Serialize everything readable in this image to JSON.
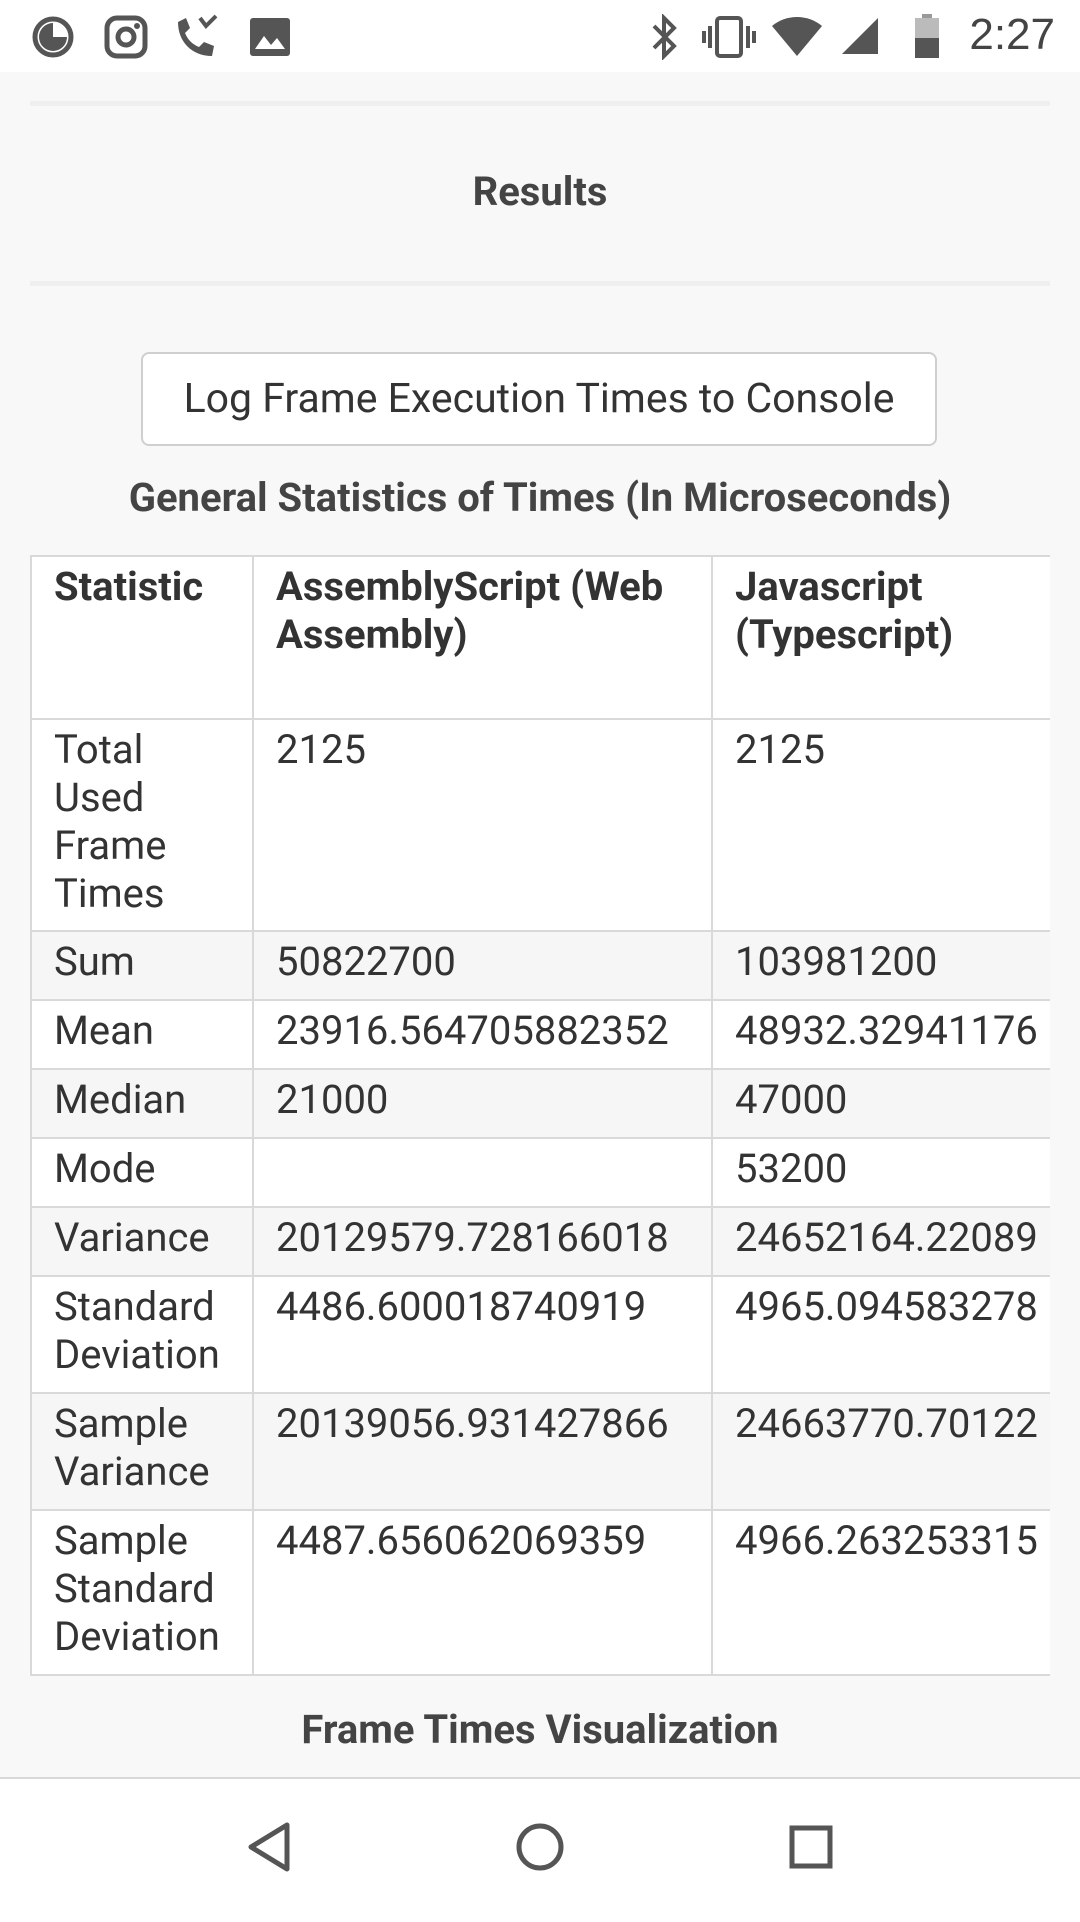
{
  "status_bar": {
    "time": "2:27",
    "left_icons": [
      "data-saver-icon",
      "instagram-icon",
      "missed-call-icon",
      "image-icon"
    ],
    "right_icons": [
      "bluetooth-icon",
      "vibrate-icon",
      "wifi-icon",
      "cell-signal-icon",
      "battery-icon"
    ]
  },
  "page": {
    "results_title": "Results",
    "log_button_label": "Log Frame Execution Times to Console",
    "stats_heading": "General Statistics of Times (In Microseconds)",
    "table": {
      "headers": [
        "Statistic",
        "AssemblyScript (Web Assembly)",
        "Javascript (Typescript)"
      ],
      "rows": [
        {
          "statistic": "Total Used Frame Times",
          "assemblyscript": "2125",
          "javascript": "2125"
        },
        {
          "statistic": "Sum",
          "assemblyscript": "50822700",
          "javascript": "103981200"
        },
        {
          "statistic": "Mean",
          "assemblyscript": "23916.564705882352",
          "javascript": "48932.32941176"
        },
        {
          "statistic": "Median",
          "assemblyscript": "21000",
          "javascript": "47000"
        },
        {
          "statistic": "Mode",
          "assemblyscript": "",
          "javascript": "53200"
        },
        {
          "statistic": "Variance",
          "assemblyscript": "20129579.728166018",
          "javascript": "24652164.22089"
        },
        {
          "statistic": "Standard Deviation",
          "assemblyscript": "4486.600018740919",
          "javascript": "4965.094583278"
        },
        {
          "statistic": "Sample Variance",
          "assemblyscript": "20139056.931427866",
          "javascript": "24663770.70122"
        },
        {
          "statistic": "Sample Standard Deviation",
          "assemblyscript": "4487.656062069359",
          "javascript": "4966.263253315"
        }
      ]
    },
    "viz_title": "Frame Times Visualization"
  },
  "nav_bar": {
    "buttons": [
      "back-icon",
      "home-icon",
      "recents-icon"
    ]
  }
}
